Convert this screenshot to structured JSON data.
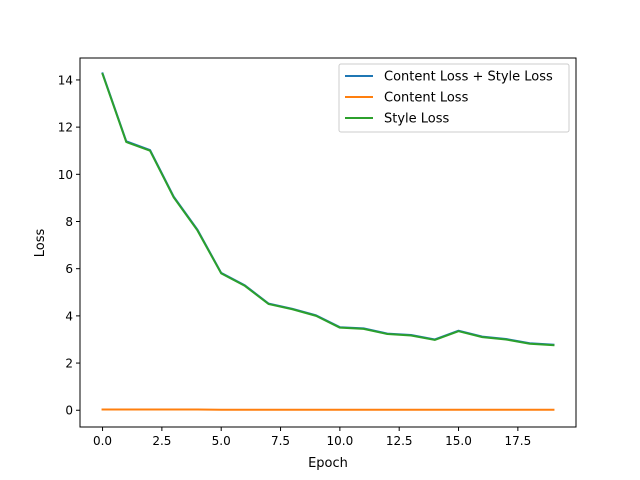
{
  "chart_data": {
    "type": "line",
    "title": "",
    "xlabel": "Epoch",
    "ylabel": "Loss",
    "xlim": [
      -0.95,
      19.95
    ],
    "ylim": [
      -0.71,
      14.93
    ],
    "xticks": [
      0.0,
      2.5,
      5.0,
      7.5,
      10.0,
      12.5,
      15.0,
      17.5
    ],
    "xtick_labels": [
      "0.0",
      "2.5",
      "5.0",
      "7.5",
      "10.0",
      "12.5",
      "15.0",
      "17.5"
    ],
    "yticks": [
      0,
      2,
      4,
      6,
      8,
      10,
      12,
      14
    ],
    "ytick_labels": [
      "0",
      "2",
      "4",
      "6",
      "8",
      "10",
      "12",
      "14"
    ],
    "grid": false,
    "legend_position": "top-right",
    "x": [
      0,
      1,
      2,
      3,
      4,
      5,
      6,
      7,
      8,
      9,
      10,
      11,
      12,
      13,
      14,
      15,
      16,
      17,
      18,
      19
    ],
    "series": [
      {
        "name": "Content Loss + Style Loss",
        "color": "#1f77b4",
        "values": [
          14.28,
          11.4,
          11.03,
          9.05,
          7.65,
          5.82,
          5.29,
          4.52,
          4.3,
          4.02,
          3.52,
          3.47,
          3.25,
          3.19,
          3.0,
          3.37,
          3.12,
          3.02,
          2.84,
          2.78
        ]
      },
      {
        "name": "Content Loss",
        "color": "#ff7f0e",
        "values": [
          0.03,
          0.03,
          0.03,
          0.03,
          0.03,
          0.02,
          0.02,
          0.02,
          0.02,
          0.02,
          0.02,
          0.02,
          0.02,
          0.02,
          0.02,
          0.02,
          0.02,
          0.02,
          0.02,
          0.02
        ]
      },
      {
        "name": "Style Loss",
        "color": "#2ca02c",
        "values": [
          14.25,
          11.37,
          11.0,
          9.02,
          7.62,
          5.8,
          5.27,
          4.5,
          4.28,
          4.0,
          3.5,
          3.45,
          3.23,
          3.17,
          2.98,
          3.35,
          3.1,
          3.0,
          2.82,
          2.76
        ]
      }
    ]
  }
}
